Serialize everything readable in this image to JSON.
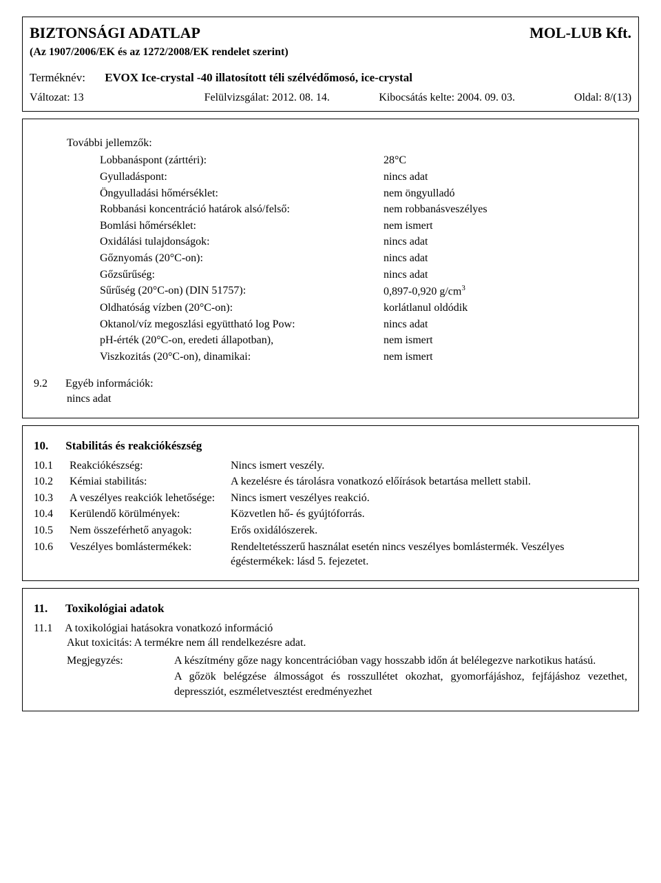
{
  "header": {
    "title_left": "BIZTONSÁGI ADATLAP",
    "title_right": "MOL-LUB Kft.",
    "regulation": "(Az 1907/2006/EK és az 1272/2008/EK rendelet szerint)"
  },
  "meta": {
    "product_label": "Terméknév:",
    "product_name": "EVOX Ice-crystal -40 illatosított téli szélvédőmosó, ice-crystal",
    "version_label": "Változat: 13",
    "review_label": "Felülvizsgálat: 2012. 08. 14.",
    "issued_label": "Kibocsátás kelte: 2004. 09. 03.",
    "page_label": "Oldal: 8/(13)"
  },
  "properties": {
    "heading": "További jellemzők:",
    "rows": [
      {
        "k": "Lobbanáspont (zárttéri):",
        "v": "28°C"
      },
      {
        "k": "Gyulladáspont:",
        "v": "nincs adat"
      },
      {
        "k": "Öngyulladási hőmérséklet:",
        "v": "nem öngyulladó"
      },
      {
        "k": "Robbanási koncentráció határok alsó/felső:",
        "v": "nem robbanásveszélyes"
      },
      {
        "k": "Bomlási hőmérséklet:",
        "v": "nem ismert"
      },
      {
        "k": "Oxidálási tulajdonságok:",
        "v": "nincs adat"
      },
      {
        "k": "Gőznyomás (20°C-on):",
        "v": "nincs adat"
      },
      {
        "k": "Gőzsűrűség:",
        "v": "nincs adat"
      },
      {
        "k": "Sűrűség (20°C-on) (DIN 51757):",
        "v": "0,897-0,920 g/cm³"
      },
      {
        "k": "Oldhatóság vízben (20°C-on):",
        "v": "korlátlanul oldódik"
      },
      {
        "k": "Oktanol/víz megoszlási együttható log Pow:",
        "v": "nincs adat"
      },
      {
        "k": "pH-érték (20°C-on, eredeti állapotban),",
        "v": "nem ismert"
      },
      {
        "k": "Viszkozitás (20°C-on), dinamikai:",
        "v": "nem ismert"
      }
    ]
  },
  "s9_2": {
    "num": "9.2",
    "label": "Egyéb információk:",
    "value": "nincs adat"
  },
  "s10": {
    "num": "10.",
    "heading": "Stabilitás és reakciókészség",
    "rows": [
      {
        "num": "10.1",
        "k": "Reakciókészség:",
        "v": "Nincs ismert veszély."
      },
      {
        "num": "10.2",
        "k": "Kémiai stabilitás:",
        "v": "A kezelésre és tárolásra vonatkozó előírások betartása mellett stabil."
      },
      {
        "num": "10.3",
        "k": "A veszélyes reakciók lehetősége:",
        "v": "Nincs ismert veszélyes reakció."
      },
      {
        "num": "10.4",
        "k": "Kerülendő körülmények:",
        "v": "Közvetlen hő- és gyújtóforrás."
      },
      {
        "num": "10.5",
        "k": "Nem összeférhető anyagok:",
        "v": "Erős oxidálószerek."
      },
      {
        "num": "10.6",
        "k": "Veszélyes bomlástermékek:",
        "v": "Rendeltetésszerű használat esetén nincs veszélyes bomlás­termék. Veszélyes égéstermékek: lásd 5. fejezetet."
      }
    ]
  },
  "s11": {
    "num": "11.",
    "heading": "Toxikológiai adatok",
    "sub_num": "11.1",
    "sub_heading": "A toxikológiai hatásokra vonatkozó információ",
    "acute_line": "Akut toxicitás: A termékre nem áll rendelkezésre adat.",
    "note_label": "Megjegyzés:",
    "note_p1": "A készítmény gőze nagy koncentrációban vagy hosszabb időn át belélegezve narkotikus hatású.",
    "note_p2": "A gőzök belégzése álmosságot és rosszullétet okozhat, gyomorfájáshoz, fejfájáshoz vezethet, depressziót, eszméletvesztést eredményezhet"
  }
}
